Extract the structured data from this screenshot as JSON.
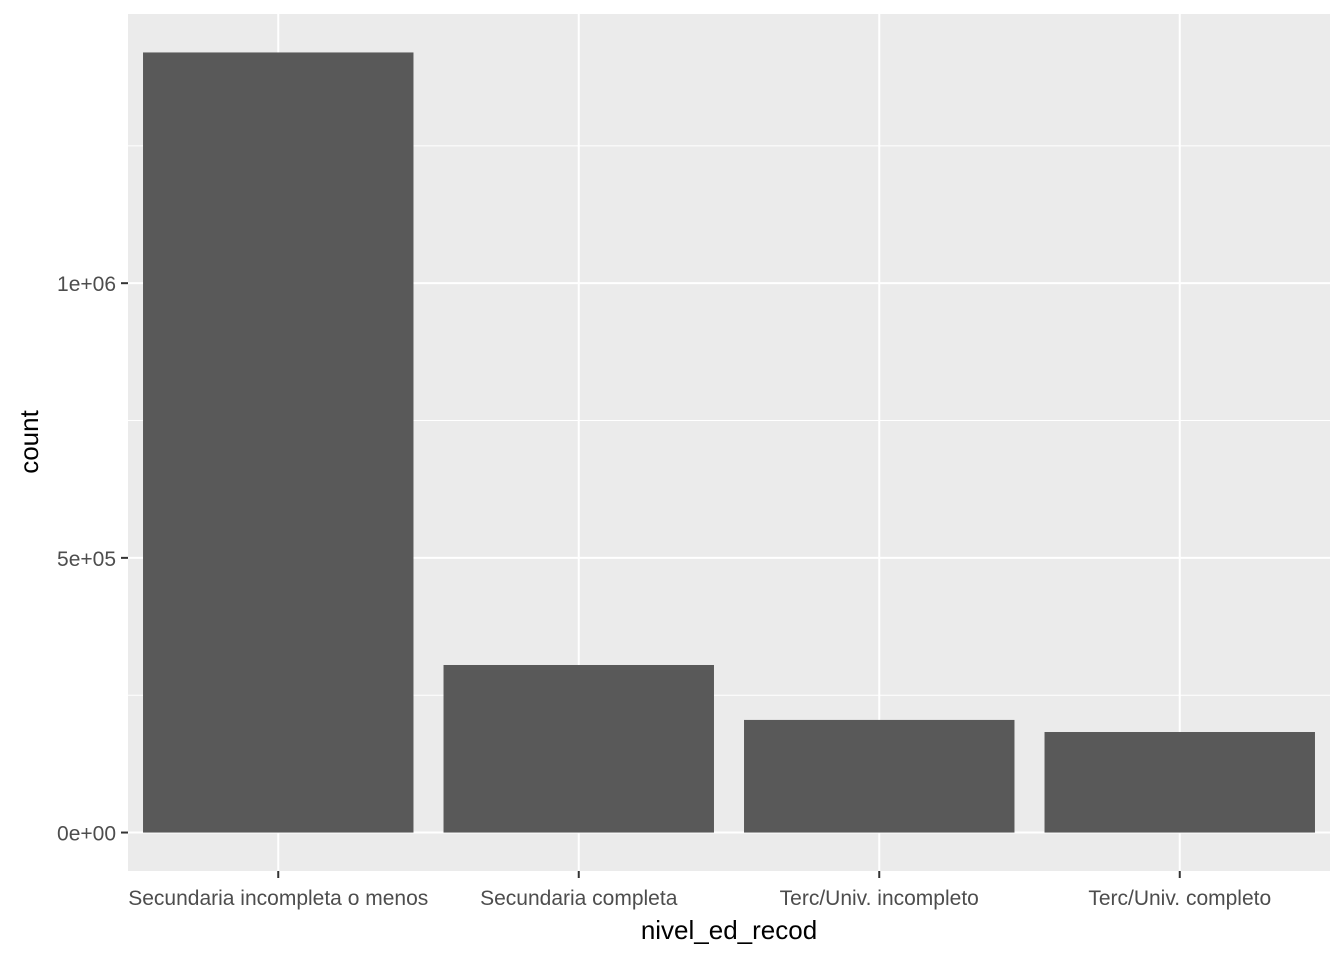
{
  "chart_data": {
    "type": "bar",
    "xlabel": "nivel_ed_recod",
    "ylabel": "count",
    "categories": [
      "Secundaria incompleta o menos",
      "Secundaria completa",
      "Terc/Univ. incompleto",
      "Terc/Univ. completo"
    ],
    "values": [
      1420000,
      305000,
      205000,
      183000
    ],
    "ylim": [
      -70000,
      1490000
    ],
    "yticks": [
      {
        "value": 0,
        "label": "0e+00"
      },
      {
        "value": 500000,
        "label": "5e+05"
      },
      {
        "value": 1000000,
        "label": "1e+06"
      }
    ],
    "yminor": [
      250000,
      750000,
      1250000
    ],
    "grid": true,
    "legend": "none",
    "colors": {
      "panel_background": "#ebebeb",
      "grid_line": "#ffffff",
      "bar_fill": "#595959",
      "tick_mark": "#333333"
    }
  }
}
